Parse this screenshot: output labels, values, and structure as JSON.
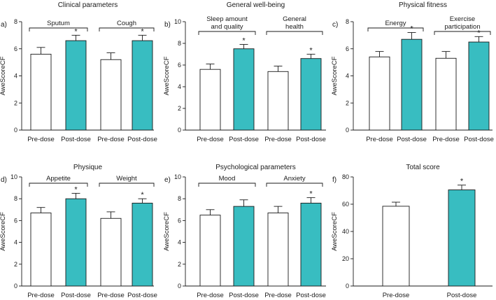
{
  "colors": {
    "pre": "#ffffff",
    "post": "#38bdc1",
    "stroke": "#1a1a1a"
  },
  "chart_data": [
    {
      "type": "bar",
      "label": "a)",
      "title": "Clinical parameters",
      "ylabel": "AweScoreCF",
      "ylim": [
        0,
        8
      ],
      "yticks": [
        0,
        2,
        4,
        6,
        8
      ],
      "categories": [
        "Pre-dose",
        "Post-dose",
        "Pre-dose",
        "Post-dose"
      ],
      "groups": [
        "Sputum",
        "Cough"
      ],
      "values": [
        5.6,
        6.6,
        5.2,
        6.6
      ],
      "errors": [
        0.5,
        0.4,
        0.5,
        0.4
      ],
      "significant": [
        false,
        true,
        false,
        true
      ],
      "star": "*"
    },
    {
      "type": "bar",
      "label": "b)",
      "title": "General well-being",
      "ylabel": "AweScoreCF",
      "ylim": [
        0,
        10
      ],
      "yticks": [
        0,
        2,
        4,
        6,
        8,
        10
      ],
      "categories": [
        "Pre-dose",
        "Post-dose",
        "Pre-dose",
        "Post-dose"
      ],
      "groups": [
        "Sleep amount and quality",
        "General health"
      ],
      "values": [
        5.6,
        7.5,
        5.4,
        6.6
      ],
      "errors": [
        0.5,
        0.4,
        0.5,
        0.4
      ],
      "significant": [
        false,
        true,
        false,
        true
      ],
      "star": "*"
    },
    {
      "type": "bar",
      "label": "c)",
      "title": "Physical fitness",
      "ylabel": "AweScoreCF",
      "ylim": [
        0,
        8
      ],
      "yticks": [
        0,
        2,
        4,
        6,
        8
      ],
      "categories": [
        "Pre-dose",
        "Post-dose",
        "Pre-dose",
        "Post-dose"
      ],
      "groups": [
        "Energy",
        "Exercise participation"
      ],
      "values": [
        5.4,
        6.7,
        5.3,
        6.5
      ],
      "errors": [
        0.4,
        0.5,
        0.5,
        0.4
      ],
      "significant": [
        false,
        true,
        false,
        true
      ],
      "star": "*"
    },
    {
      "type": "bar",
      "label": "d)",
      "title": "Physique",
      "ylabel": "AweScoreCF",
      "ylim": [
        0,
        10
      ],
      "yticks": [
        0,
        2,
        4,
        6,
        8,
        10
      ],
      "categories": [
        "Pre-dose",
        "Post-dose",
        "Pre-dose",
        "Post-dose"
      ],
      "groups": [
        "Appetite",
        "Weight"
      ],
      "values": [
        6.7,
        8.0,
        6.2,
        7.6
      ],
      "errors": [
        0.5,
        0.5,
        0.6,
        0.4
      ],
      "significant": [
        false,
        true,
        false,
        true
      ],
      "star": "*"
    },
    {
      "type": "bar",
      "label": "e)",
      "title": "Psychological parameters",
      "ylabel": "AweScoreCF",
      "ylim": [
        0,
        10
      ],
      "yticks": [
        0,
        2,
        4,
        6,
        8,
        10
      ],
      "categories": [
        "Pre-dose",
        "Post-dose",
        "Pre-dose",
        "Post-dose"
      ],
      "groups": [
        "Mood",
        "Anxiety"
      ],
      "values": [
        6.5,
        7.3,
        6.7,
        7.6
      ],
      "errors": [
        0.5,
        0.6,
        0.6,
        0.5
      ],
      "significant": [
        false,
        false,
        false,
        true
      ],
      "star": "*"
    },
    {
      "type": "bar",
      "label": "f)",
      "title": "Total score",
      "ylabel": "AweScoreCF",
      "ylim": [
        0,
        80
      ],
      "yticks": [
        0,
        20,
        40,
        60,
        80
      ],
      "categories": [
        "Pre-dose",
        "Post-dose"
      ],
      "groups": [],
      "values": [
        58.5,
        70.5
      ],
      "errors": [
        3.0,
        3.5
      ],
      "significant": [
        false,
        true
      ],
      "star": "*"
    }
  ]
}
